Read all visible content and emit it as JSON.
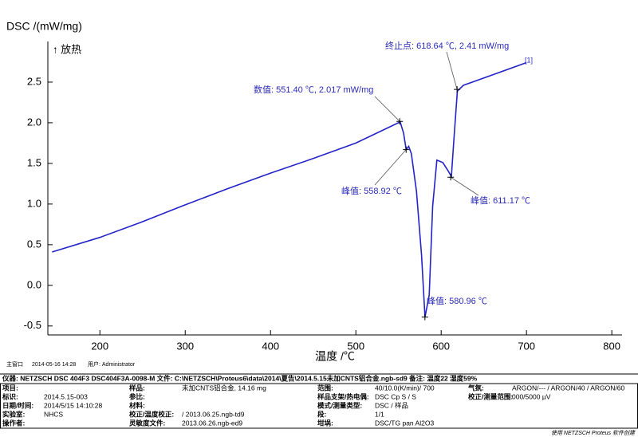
{
  "chart_data": {
    "type": "line",
    "y_label": "DSC /(mW/mg)",
    "direction_label": "↑ 放热",
    "x_label": "温度 /℃",
    "curve_tag": "[1]",
    "color": "#2323c8",
    "xlim": [
      139,
      812
    ],
    "ylim": [
      -0.61,
      3.0
    ],
    "xticks": [
      200,
      300,
      400,
      500,
      600,
      700,
      800
    ],
    "yticks": [
      -0.5,
      {
        "value": 0,
        "label": "0.0"
      },
      0.5,
      {
        "value": 1,
        "label": "1.0"
      },
      1.5,
      {
        "value": 2,
        "label": "2.0"
      },
      2.5
    ],
    "x": [
      144,
      200,
      247,
      300,
      350,
      400,
      450,
      500,
      552,
      556,
      559,
      562,
      565,
      571,
      577,
      581,
      586,
      590,
      595,
      602,
      608,
      612,
      615,
      619,
      626,
      642,
      700
    ],
    "values": [
      0.41,
      0.59,
      0.77,
      0.99,
      1.19,
      1.38,
      1.56,
      1.75,
      2.01,
      1.87,
      1.67,
      1.71,
      1.62,
      1.16,
      0.37,
      -0.39,
      -0.12,
      0.97,
      1.54,
      1.51,
      1.41,
      1.34,
      1.8,
      2.39,
      2.46,
      2.52,
      2.74
    ],
    "annotations": [
      {
        "text": "数值: 551.40 ℃, 2.017 mW/mg",
        "x": 551.4,
        "y": 2.017
      },
      {
        "text": "终止点: 618.64 ℃, 2.41 mW/mg",
        "x": 618.64,
        "y": 2.41
      },
      {
        "text": "峰值: 558.92 ℃",
        "x": 558.92,
        "y": 1.67
      },
      {
        "text": "峰值: 611.17 ℃",
        "x": 611.17,
        "y": 1.33
      },
      {
        "text": "峰值: 580.96 ℃",
        "x": 580.96,
        "y": -0.39
      }
    ]
  },
  "status": {
    "window": "主窗口",
    "time": "2014-05-16 14:28",
    "user": "用户: Administrator"
  },
  "info": {
    "header": "仪器: NETZSCH DSC 404F3 DSC404F3A-0098-M   文件: C:\\NETZSCH\\Proteus6\\data\\2014\\夏告\\2014.5.15未加CNTS铝合金.ngb-sd9   备注: 温度22 湿度59%",
    "rows": [
      [
        {
          "label": "项目:"
        },
        {
          "label": "样品:",
          "value": "未加CNTS铝合金, 14.16 mg"
        },
        {
          "label": "范围:",
          "value": "40/10.0(K/min)/ 700"
        },
        {
          "label": "气氛:",
          "value": "ARGON/--- / ARGON/40 / ARGON/60"
        }
      ],
      [
        {
          "label": "标识:",
          "value": "2014.5.15-003"
        },
        {
          "label": "参比:"
        },
        {
          "label": "样品支架/热电偶:",
          "value": "DSC Cp S / S"
        },
        {
          "label": "校正/测量范围:",
          "value": "000/5000 µV"
        }
      ],
      [
        {
          "label": "日期/时间:",
          "value": "2014/5/15 14:10:28"
        },
        {
          "label": "材料:"
        },
        {
          "label": "模式/测量类型:",
          "value": "DSC / 样品"
        }
      ],
      [
        {
          "label": "实验室:",
          "value": "NHCS"
        },
        {
          "label": "校正/温度校正:",
          "value": "/ 2013.06.25.ngb-td9"
        },
        {
          "label": "段:",
          "value": "1/1"
        }
      ],
      [
        {
          "label": "操作者:"
        },
        {
          "label": "灵敏度文件:",
          "value": "2013.06.26.ngb-ed9"
        },
        {
          "label": "坩埚:",
          "value": "DSC/TG pan Al2O3"
        }
      ]
    ]
  },
  "footer": "使用 NETZSCH Proteus 软件创建"
}
